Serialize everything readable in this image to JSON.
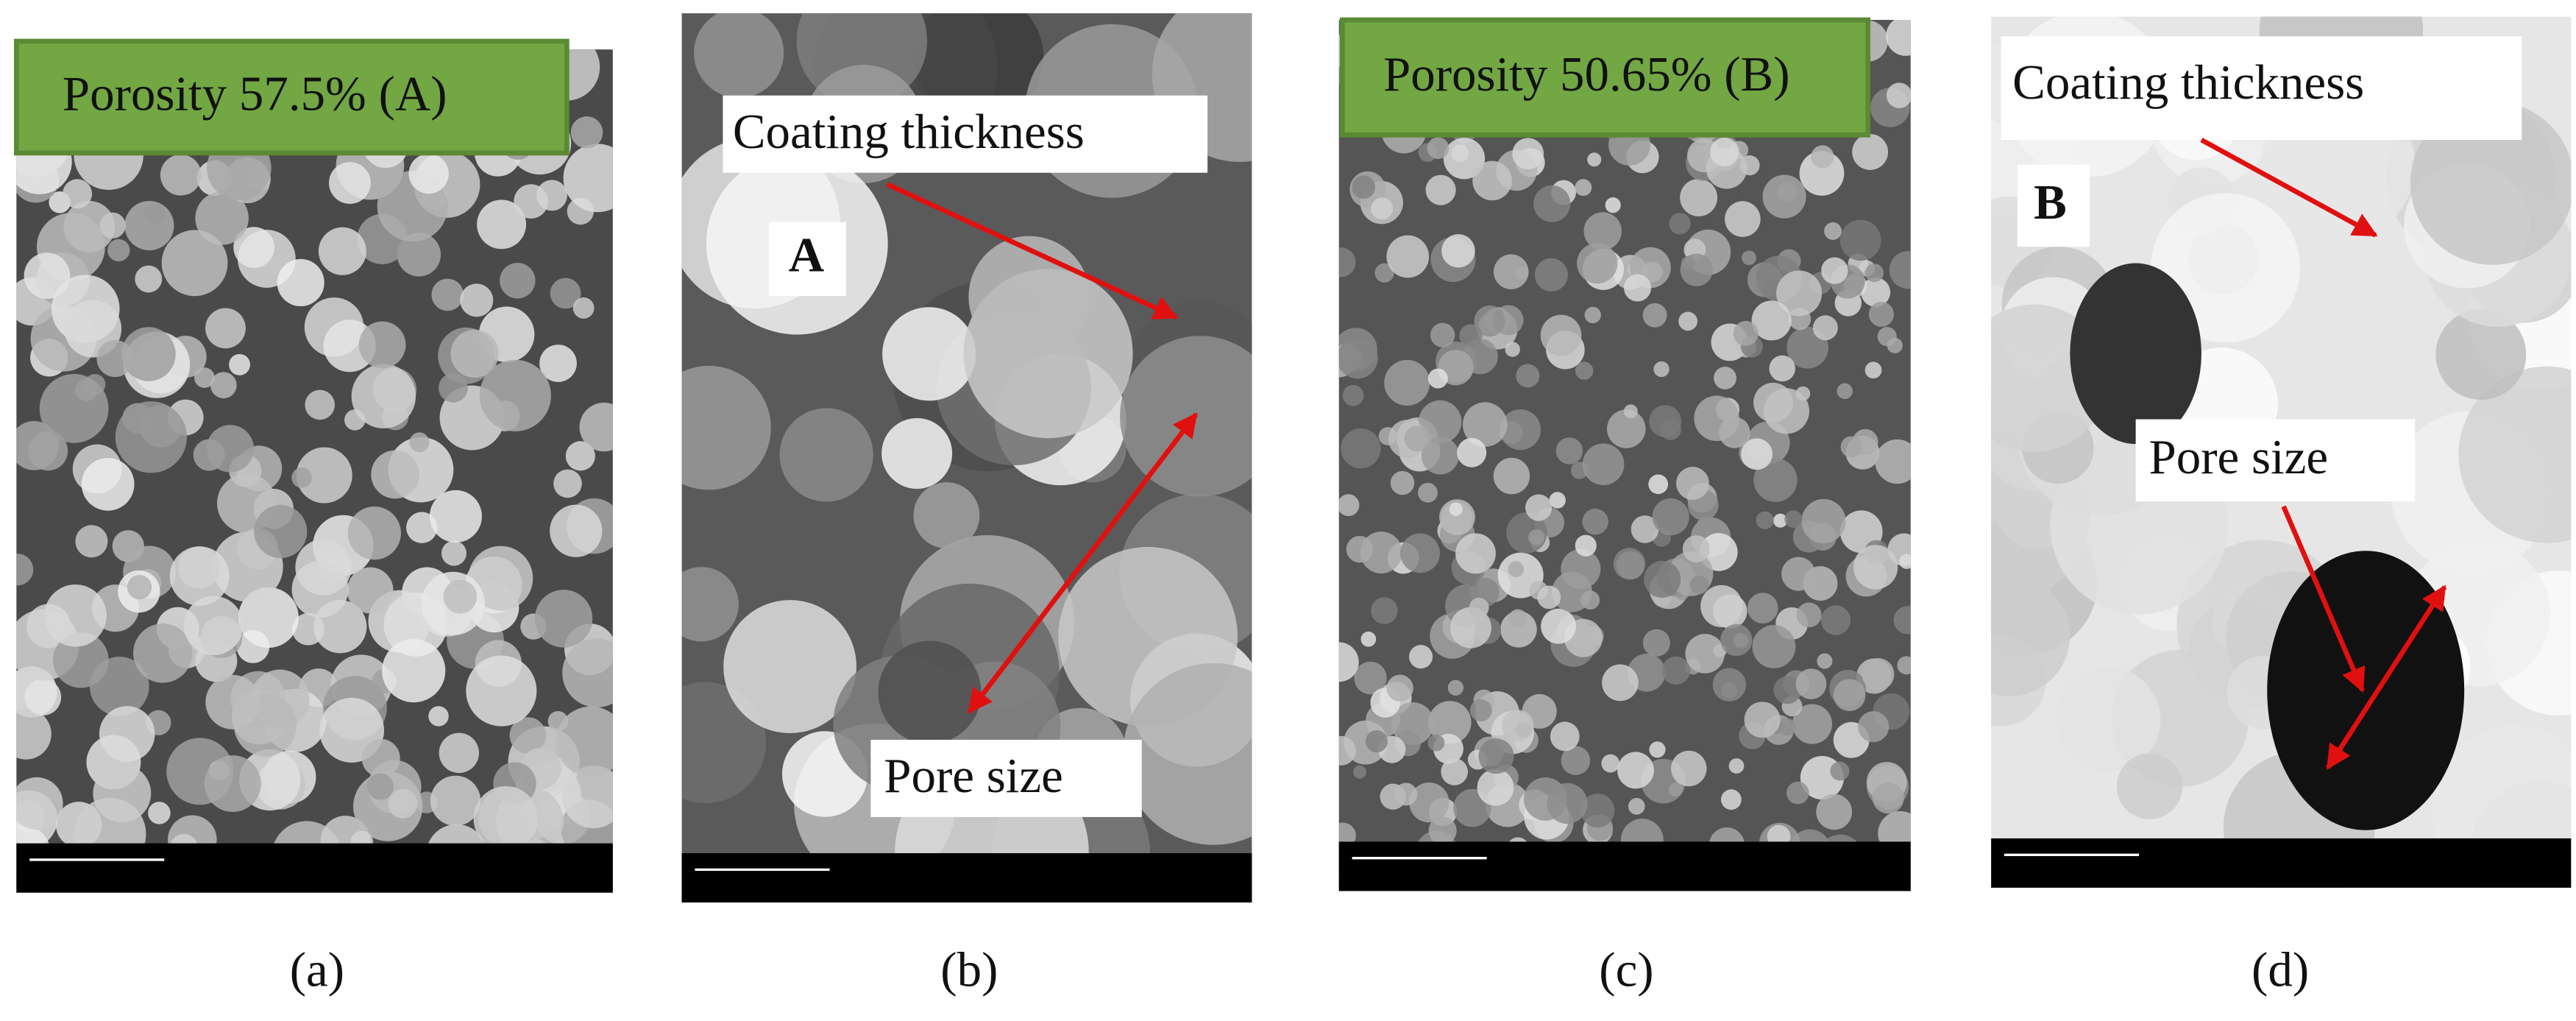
{
  "panels": [
    {
      "caption": "(a)",
      "labels": [
        "Porosity 57.5% (A)"
      ]
    },
    {
      "caption": "(b)",
      "labels": [
        "Coating thickness",
        "A",
        "Pore size"
      ]
    },
    {
      "caption": "(c)",
      "labels": [
        "Porosity 50.65% (B)"
      ]
    },
    {
      "caption": "(d)",
      "labels": [
        "Coating thickness",
        "B",
        "Pore size"
      ]
    }
  ]
}
